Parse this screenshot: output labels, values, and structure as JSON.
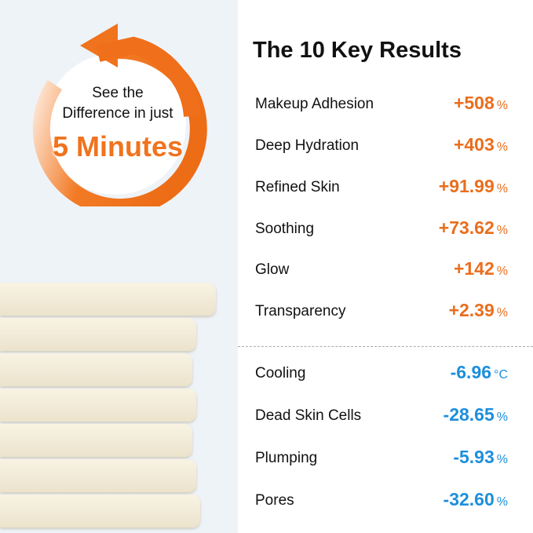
{
  "badge": {
    "line1": "See the",
    "line2": "Difference in just",
    "highlight": "5 Minutes",
    "color": "#f0731e",
    "icon": "counterclockwise-arrow-icon"
  },
  "title": "The 10 Key Results",
  "increases": [
    {
      "label": "Makeup Adhesion",
      "value": "+508",
      "unit": "%"
    },
    {
      "label": "Deep Hydration",
      "value": "+403",
      "unit": "%"
    },
    {
      "label": "Refined Skin",
      "value": "+91.99",
      "unit": "%"
    },
    {
      "label": "Soothing",
      "value": "+73.62",
      "unit": "%"
    },
    {
      "label": "Glow",
      "value": "+142",
      "unit": "%"
    },
    {
      "label": "Transparency",
      "value": "+2.39",
      "unit": "%"
    }
  ],
  "decreases": [
    {
      "label": "Cooling",
      "value": "-6.96",
      "unit": "°C"
    },
    {
      "label": "Dead Skin Cells",
      "value": "-28.65",
      "unit": "%"
    },
    {
      "label": "Plumping",
      "value": "-5.93",
      "unit": "%"
    },
    {
      "label": "Pores",
      "value": "-32.60",
      "unit": "%"
    }
  ],
  "colors": {
    "increase": "#ea6e1d",
    "decrease": "#1d8fdc",
    "left_bg": "#eef3f8"
  }
}
